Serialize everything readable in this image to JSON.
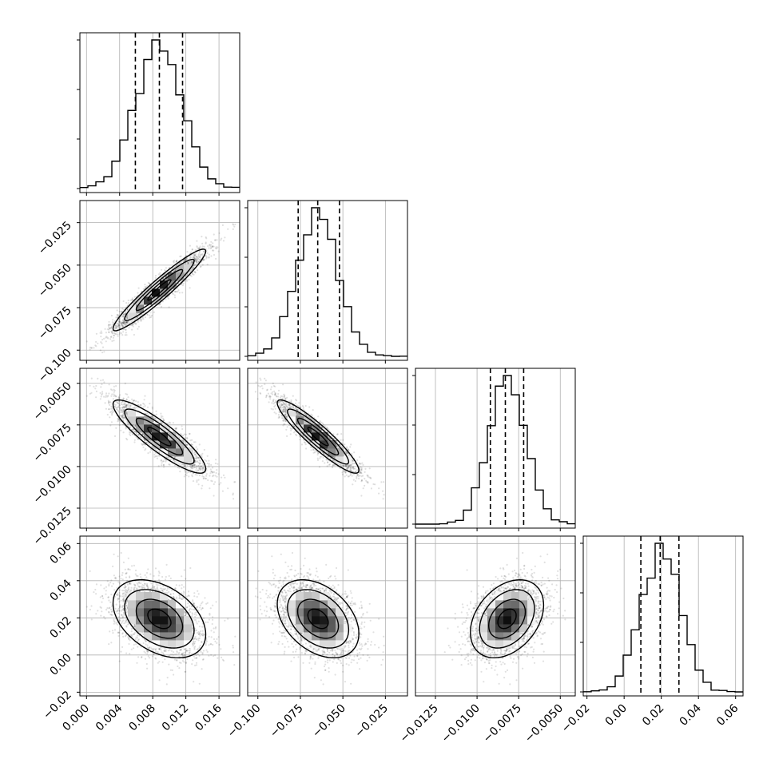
{
  "chart_data": {
    "type": "corner",
    "title": "",
    "parameters": [
      {
        "range": [
          -0.0008,
          0.0185
        ],
        "ticks": [
          0.0,
          0.004,
          0.008,
          0.012,
          0.016
        ],
        "tick_labels": [
          "0.000",
          "0.004",
          "0.008",
          "0.012",
          "0.016"
        ],
        "quantiles": [
          0.0059,
          0.0088,
          0.0116
        ],
        "mean": 0.0088,
        "sd": 0.0028
      },
      {
        "range": [
          -0.106,
          -0.012
        ],
        "ticks": [
          -0.1,
          -0.075,
          -0.05,
          -0.025
        ],
        "tick_labels": [
          "−0.100",
          "−0.075",
          "−0.050",
          "−0.025"
        ],
        "quantiles": [
          -0.0763,
          -0.0648,
          -0.052
        ],
        "mean": -0.0646,
        "sd": 0.012
      },
      {
        "range": [
          -0.0137,
          -0.0041
        ],
        "ticks": [
          -0.0125,
          -0.01,
          -0.0075,
          -0.005
        ],
        "tick_labels": [
          "−0.0125",
          "−0.0100",
          "−0.0075",
          "−0.0050"
        ],
        "quantiles": [
          -0.0092,
          -0.0083,
          -0.0072
        ],
        "mean": -0.0082,
        "sd": 0.0011
      },
      {
        "range": [
          -0.022,
          0.064
        ],
        "ticks": [
          -0.02,
          0.0,
          0.02,
          0.04,
          0.06
        ],
        "tick_labels": [
          "−0.02",
          "0.00",
          "0.02",
          "0.04",
          "0.06"
        ],
        "quantiles": [
          0.009,
          0.0194,
          0.0295
        ],
        "mean": 0.0195,
        "sd": 0.0105
      }
    ],
    "correlations": [
      [
        1.0,
        0.95,
        -0.88,
        -0.4
      ],
      [
        0.95,
        1.0,
        -0.92,
        -0.38
      ],
      [
        -0.88,
        -0.92,
        1.0,
        0.35
      ],
      [
        -0.4,
        -0.38,
        0.35,
        1.0
      ]
    ],
    "quantile_levels": [
      0.16,
      0.5,
      0.84
    ],
    "grid": true,
    "colors": {
      "hist": "#000000",
      "grid": "#b0b0b0",
      "points": "#000000"
    }
  }
}
